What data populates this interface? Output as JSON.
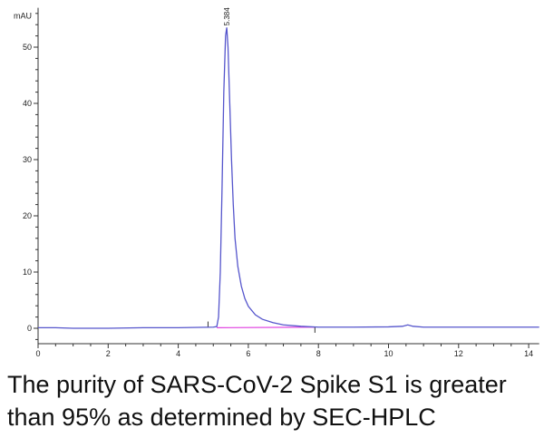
{
  "chart_data": {
    "type": "line",
    "title": "",
    "xlabel": "",
    "ylabel": "mAU",
    "xlim": [
      0,
      14.3
    ],
    "ylim": [
      -3,
      57
    ],
    "x_ticks": [
      0,
      2,
      4,
      6,
      8,
      10,
      12,
      14
    ],
    "y_ticks": [
      0,
      10,
      20,
      30,
      40,
      50
    ],
    "grid": false,
    "line_color": "#5555cc",
    "baseline_color": "#e040e0",
    "peak_label": "5.384",
    "peak": {
      "x": 5.384,
      "y": 53.5
    },
    "integration_baseline": [
      [
        5.1,
        0.1
      ],
      [
        7.9,
        0.2
      ]
    ],
    "series": [
      {
        "points": [
          [
            0,
            0.1
          ],
          [
            0.5,
            0.1
          ],
          [
            1,
            0.0
          ],
          [
            2,
            0.0
          ],
          [
            3,
            0.1
          ],
          [
            4,
            0.1
          ],
          [
            5,
            0.2
          ],
          [
            5.1,
            0.3
          ],
          [
            5.15,
            2
          ],
          [
            5.2,
            10
          ],
          [
            5.25,
            25
          ],
          [
            5.3,
            42
          ],
          [
            5.35,
            52
          ],
          [
            5.384,
            53.5
          ],
          [
            5.42,
            50
          ],
          [
            5.47,
            40
          ],
          [
            5.52,
            30
          ],
          [
            5.57,
            22
          ],
          [
            5.62,
            16
          ],
          [
            5.7,
            11
          ],
          [
            5.8,
            7.5
          ],
          [
            5.9,
            5.3
          ],
          [
            6.0,
            3.9
          ],
          [
            6.2,
            2.4
          ],
          [
            6.4,
            1.6
          ],
          [
            6.7,
            1.0
          ],
          [
            7.0,
            0.6
          ],
          [
            7.5,
            0.35
          ],
          [
            8,
            0.2
          ],
          [
            9,
            0.2
          ],
          [
            10,
            0.25
          ],
          [
            10.4,
            0.35
          ],
          [
            10.55,
            0.6
          ],
          [
            10.7,
            0.35
          ],
          [
            11,
            0.2
          ],
          [
            12,
            0.2
          ],
          [
            13,
            0.2
          ],
          [
            14.3,
            0.2
          ]
        ]
      }
    ]
  },
  "caption": {
    "line1": "The purity of SARS-CoV-2 Spike S1 is greater",
    "line2": "than 95% as determined by SEC-HPLC"
  }
}
